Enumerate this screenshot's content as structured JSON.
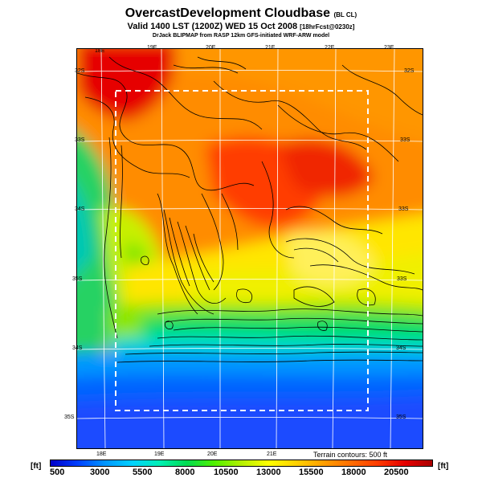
{
  "header": {
    "title": "OvercastDevelopment Cloudbase",
    "title_suffix": "(BL CL)",
    "valid_line": "Valid 1400 LST (1200Z) WED 15 Oct 2008",
    "valid_suffix": "[18hrFcst@0230z]",
    "credit": "DrJack BLIPMAP from RASP 12km GFS-initiated WRF-ARW model"
  },
  "map": {
    "top_lon_labels": [
      "18E",
      "19E",
      "20E",
      "21E",
      "22E",
      "23E"
    ],
    "bottom_lon_labels": [
      "18E",
      "19E",
      "20E",
      "21E"
    ],
    "left_lat_labels": [
      "32S",
      "33S",
      "34S",
      "35S",
      "34S",
      "35S"
    ],
    "right_lat_labels": [
      "32S",
      "33S",
      "33S",
      "33S",
      "34S",
      "35S"
    ],
    "terrain_note": "Terrain contours: 500 ft"
  },
  "legend": {
    "unit_left": "[ft]",
    "unit_right": "[ft]",
    "ticks": [
      "500",
      "3000",
      "5500",
      "8000",
      "10500",
      "13000",
      "15500",
      "18000",
      "20500"
    ],
    "colors": [
      "#0000c8",
      "#0040ff",
      "#0096ff",
      "#00d2ff",
      "#00f0b4",
      "#00dc50",
      "#50f000",
      "#b4f000",
      "#ffff00",
      "#ffd200",
      "#ffa000",
      "#ff6e00",
      "#ff3c00",
      "#e60000",
      "#aa0000"
    ]
  }
}
